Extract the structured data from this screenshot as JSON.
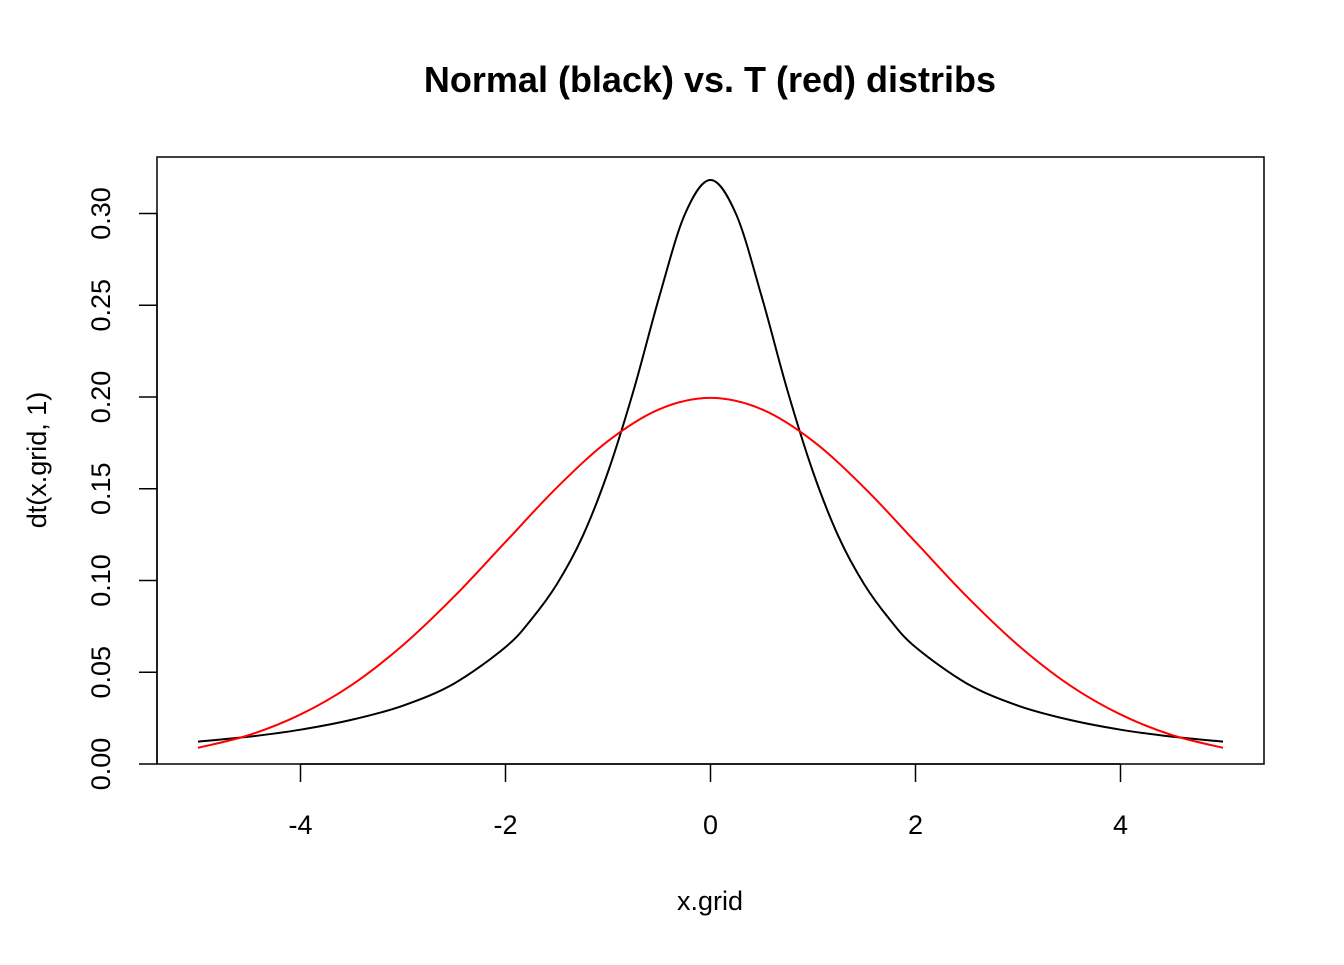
{
  "chart_data": {
    "type": "line",
    "title": "Normal (black) vs. T (red) distribs",
    "xlabel": "x.grid",
    "ylabel": "dt(x.grid, 1)",
    "xlim": [
      -5.4,
      5.4
    ],
    "ylim": [
      0,
      0.3308
    ],
    "xticks": [
      -4,
      -2,
      0,
      2,
      4
    ],
    "xtick_labels": [
      "-4",
      "-2",
      "0",
      "2",
      "4"
    ],
    "yticks": [
      0,
      0.05,
      0.1,
      0.15,
      0.2,
      0.25,
      0.3
    ],
    "ytick_labels": [
      "0.00",
      "0.05",
      "0.10",
      "0.15",
      "0.20",
      "0.25",
      "0.30"
    ],
    "grid": false,
    "legend": "none",
    "series": [
      {
        "color": "#000000",
        "x": [
          -5,
          -4.5,
          -4,
          -3.5,
          -3,
          -2.5,
          -2,
          -1.75,
          -1.5,
          -1.25,
          -1,
          -0.75,
          -0.5,
          -0.25,
          0,
          0.25,
          0.5,
          0.75,
          1,
          1.25,
          1.5,
          1.75,
          2,
          2.5,
          3,
          3.5,
          4,
          4.5,
          5
        ],
        "y": [
          0.0122,
          0.0149,
          0.0187,
          0.0241,
          0.0318,
          0.0439,
          0.0637,
          0.0787,
          0.0979,
          0.1238,
          0.1592,
          0.2037,
          0.2546,
          0.2996,
          0.3183,
          0.2996,
          0.2546,
          0.2037,
          0.1592,
          0.1238,
          0.0979,
          0.0787,
          0.0637,
          0.0439,
          0.0318,
          0.0241,
          0.0187,
          0.0149,
          0.0122
        ]
      },
      {
        "color": "#ff0000",
        "x": [
          -5,
          -4.5,
          -4,
          -3.5,
          -3,
          -2.5,
          -2,
          -1.5,
          -1,
          -0.5,
          0,
          0.5,
          1,
          1.5,
          2,
          2.5,
          3,
          3.5,
          4,
          4.5,
          5
        ],
        "y": [
          0.0088,
          0.0158,
          0.027,
          0.0431,
          0.0648,
          0.0913,
          0.121,
          0.1506,
          0.176,
          0.1933,
          0.1995,
          0.1933,
          0.176,
          0.1506,
          0.121,
          0.0913,
          0.0648,
          0.0431,
          0.027,
          0.0158,
          0.0088
        ]
      }
    ]
  },
  "colors": {
    "background": "#ffffff",
    "axis": "#000000"
  }
}
